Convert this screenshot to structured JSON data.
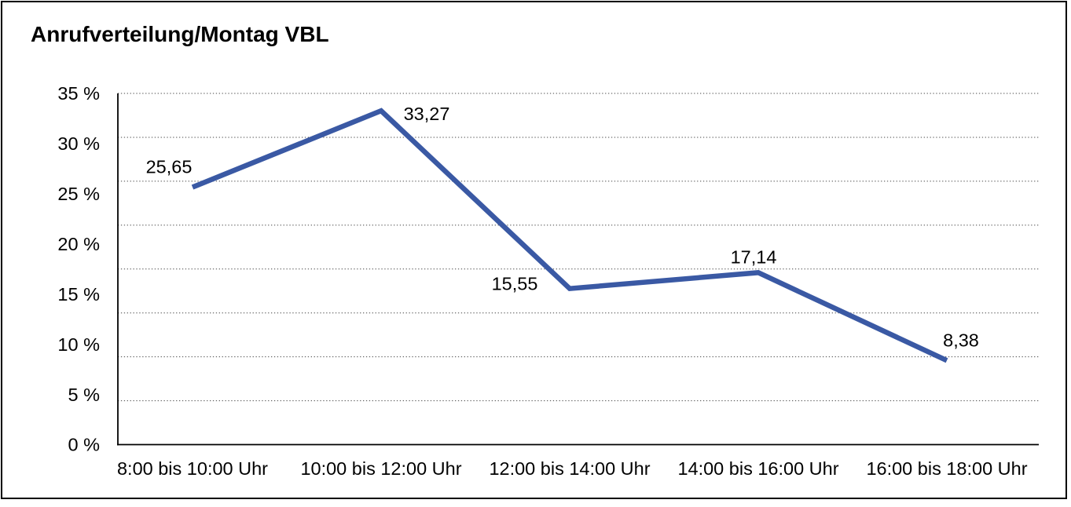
{
  "chart_data": {
    "type": "line",
    "title": "Anrufverteilung/Montag VBL",
    "categories": [
      "8:00 bis 10:00 Uhr",
      "10:00 bis 12:00 Uhr",
      "12:00 bis 14:00 Uhr",
      "14:00 bis 16:00 Uhr",
      "16:00 bis 18:00 Uhr"
    ],
    "values": [
      25.65,
      33.27,
      15.55,
      17.14,
      8.38
    ],
    "value_labels": [
      "25,65",
      "33,27",
      "15,55",
      "17,14",
      "8,38"
    ],
    "y_ticks": [
      "35 %",
      "30 %",
      "25 %",
      "20 %",
      "15 %",
      "10 %",
      "5 %",
      "0 %"
    ],
    "ylim": [
      0,
      35
    ],
    "xlabel": "",
    "ylabel": "",
    "legend": "none",
    "grid": "horizontal-dotted",
    "line_color": "#3A59A4",
    "axis_color": "#000000",
    "gridline_color": "#454545"
  }
}
